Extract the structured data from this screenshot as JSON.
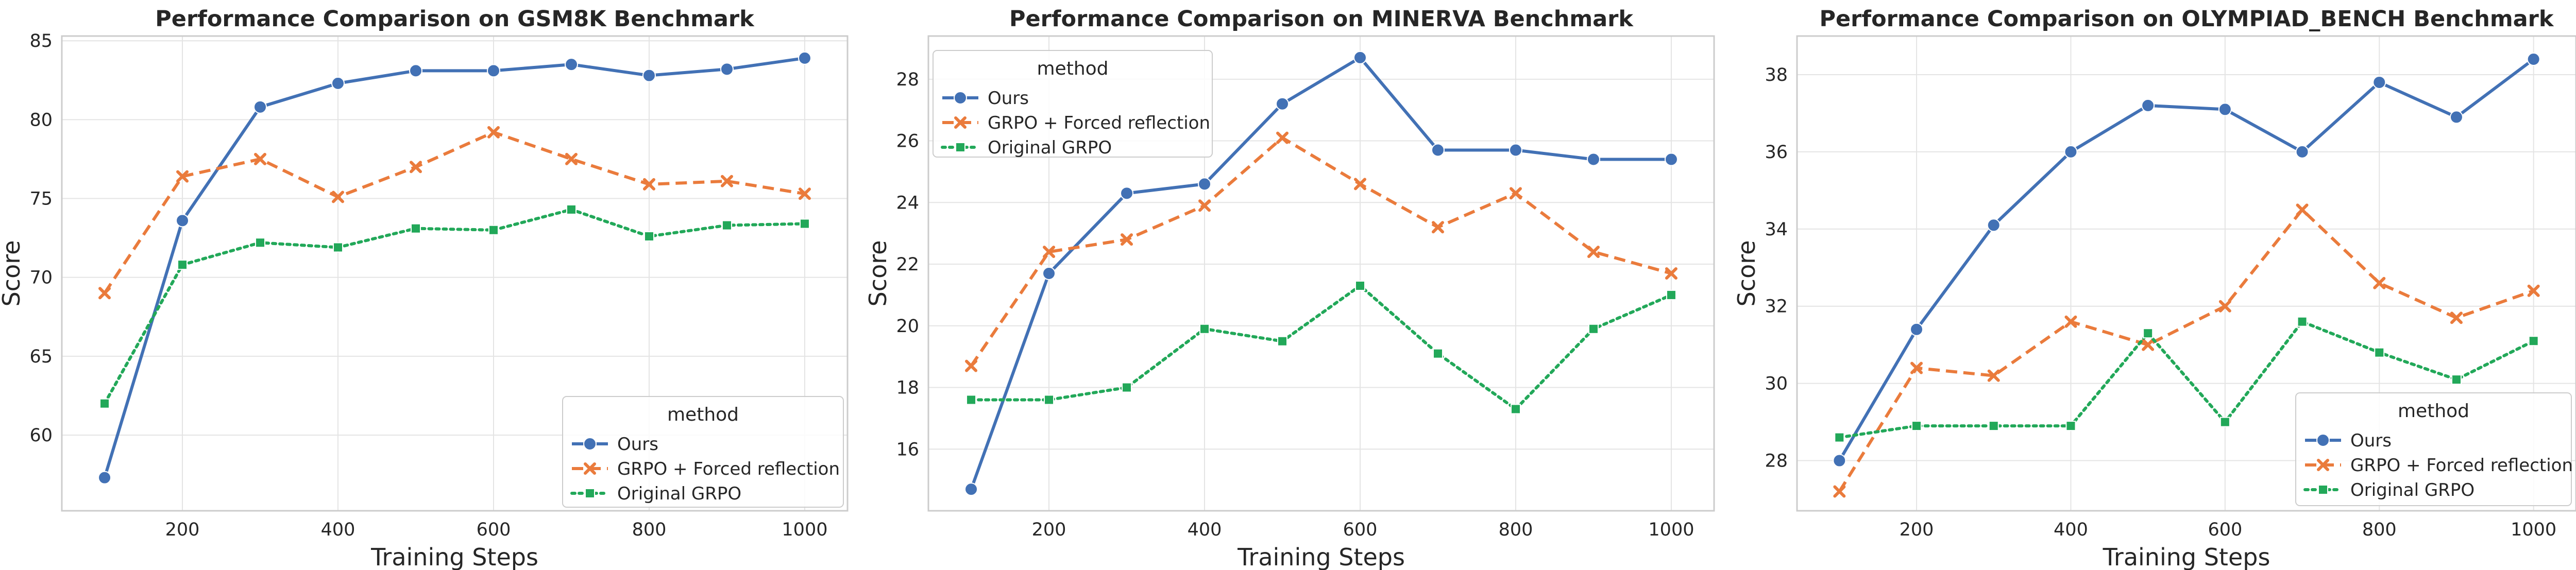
{
  "chart_data": [
    {
      "type": "line",
      "title": "Performance Comparison on GSM8K Benchmark",
      "xlabel": "Training Steps",
      "ylabel": "Score",
      "x": [
        100,
        200,
        300,
        400,
        500,
        600,
        700,
        800,
        900,
        1000
      ],
      "xlim": [
        45,
        1055
      ],
      "ylim": [
        55.2,
        85.3
      ],
      "xticks": [
        200,
        400,
        600,
        800,
        1000
      ],
      "yticks": [
        60,
        65,
        70,
        75,
        80,
        85
      ],
      "grid": true,
      "legend": {
        "title": "method",
        "position": "lower-right"
      },
      "series": [
        {
          "name": "Ours",
          "values": [
            57.3,
            73.6,
            80.8,
            82.3,
            83.1,
            83.1,
            83.5,
            82.8,
            83.2,
            83.9
          ]
        },
        {
          "name": "GRPO + Forced reflection",
          "values": [
            69.0,
            76.4,
            77.5,
            75.1,
            77.0,
            79.2,
            77.5,
            75.9,
            76.1,
            75.3
          ]
        },
        {
          "name": "Original GRPO",
          "values": [
            62.0,
            70.8,
            72.2,
            71.9,
            73.1,
            73.0,
            74.3,
            72.6,
            73.3,
            73.4
          ]
        }
      ]
    },
    {
      "type": "line",
      "title": "Performance Comparison on MINERVA Benchmark",
      "xlabel": "Training Steps",
      "ylabel": "Score",
      "x": [
        100,
        200,
        300,
        400,
        500,
        600,
        700,
        800,
        900,
        1000
      ],
      "xlim": [
        45,
        1055
      ],
      "ylim": [
        14.0,
        29.4
      ],
      "xticks": [
        200,
        400,
        600,
        800,
        1000
      ],
      "yticks": [
        16,
        18,
        20,
        22,
        24,
        26,
        28
      ],
      "grid": true,
      "legend": {
        "title": "method",
        "position": "upper-left"
      },
      "series": [
        {
          "name": "Ours",
          "values": [
            14.7,
            21.7,
            24.3,
            24.6,
            27.2,
            28.7,
            25.7,
            25.7,
            25.4,
            25.4
          ]
        },
        {
          "name": "GRPO + Forced reflection",
          "values": [
            18.7,
            22.4,
            22.8,
            23.9,
            26.1,
            24.6,
            23.2,
            24.3,
            22.4,
            21.7
          ]
        },
        {
          "name": "Original GRPO",
          "values": [
            17.6,
            17.6,
            18.0,
            19.9,
            19.5,
            21.3,
            19.1,
            17.3,
            19.9,
            21.0
          ]
        }
      ]
    },
    {
      "type": "line",
      "title": "Performance Comparison on OLYMPIAD_BENCH Benchmark",
      "xlabel": "Training Steps",
      "ylabel": "Score",
      "x": [
        100,
        200,
        300,
        400,
        500,
        600,
        700,
        800,
        900,
        1000
      ],
      "xlim": [
        45,
        1055
      ],
      "ylim": [
        26.7,
        39.0
      ],
      "xticks": [
        200,
        400,
        600,
        800,
        1000
      ],
      "yticks": [
        28,
        30,
        32,
        34,
        36,
        38
      ],
      "grid": true,
      "legend": {
        "title": "method",
        "position": "lower-right"
      },
      "series": [
        {
          "name": "Ours",
          "values": [
            28.0,
            31.4,
            34.1,
            36.0,
            37.2,
            37.1,
            36.0,
            37.8,
            36.9,
            38.4
          ]
        },
        {
          "name": "GRPO + Forced reflection",
          "values": [
            27.2,
            30.4,
            30.2,
            31.6,
            31.0,
            32.0,
            34.5,
            32.6,
            31.7,
            32.4
          ]
        },
        {
          "name": "Original GRPO",
          "values": [
            28.6,
            28.9,
            28.9,
            28.9,
            31.3,
            29.0,
            31.6,
            30.8,
            30.1,
            31.1
          ]
        }
      ]
    }
  ],
  "styles": {
    "series_colors": [
      "#4271b5",
      "#ea7b3c",
      "#22a859"
    ],
    "series_markers": [
      "circle",
      "x",
      "square"
    ],
    "series_dash": [
      "solid",
      "dashed",
      "dotted"
    ],
    "grid_color": "#e4e4e4",
    "frame_color": "#cccccc"
  }
}
